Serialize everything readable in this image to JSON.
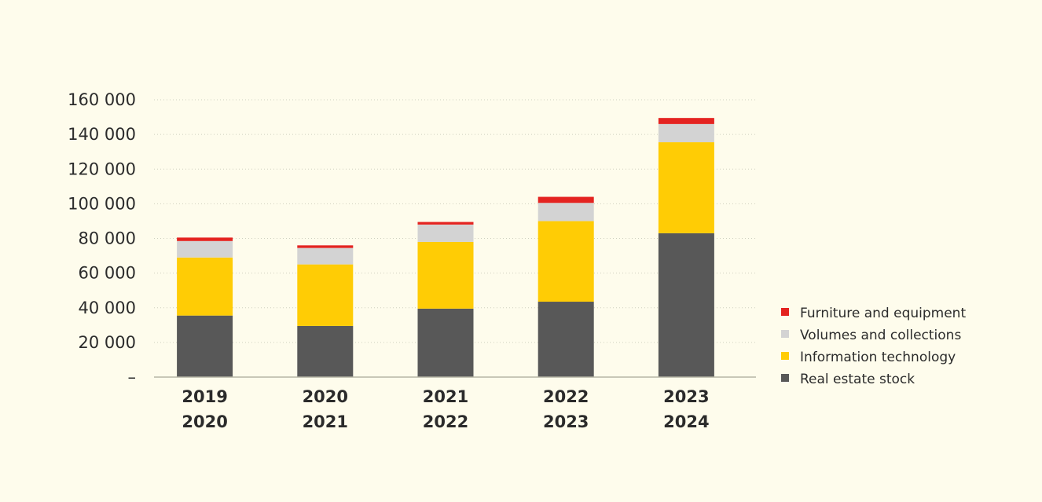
{
  "chart_data": {
    "type": "bar",
    "stacked": true,
    "categories": [
      [
        "2019",
        "2020"
      ],
      [
        "2020",
        "2021"
      ],
      [
        "2021",
        "2022"
      ],
      [
        "2022",
        "2023"
      ],
      [
        "2023",
        "2024"
      ]
    ],
    "series": [
      {
        "name": "Real estate stock",
        "color": "#585858",
        "values": [
          35500,
          29500,
          39500,
          43500,
          83000
        ]
      },
      {
        "name": "Information technology",
        "color": "#ffcc05",
        "values": [
          33500,
          35500,
          38500,
          46500,
          52500
        ]
      },
      {
        "name": "Volumes and collections",
        "color": "#d3d3d3",
        "values": [
          9500,
          9500,
          10000,
          10500,
          10500
        ]
      },
      {
        "name": "Furniture and equipment",
        "color": "#e42320",
        "values": [
          2000,
          1500,
          1500,
          3500,
          3500
        ]
      }
    ],
    "y_ticks": [
      0,
      20000,
      40000,
      60000,
      80000,
      100000,
      120000,
      140000,
      160000
    ],
    "y_tick_labels": [
      "–",
      "20 000",
      "40 000",
      "60 000",
      "80 000",
      "100 000",
      "120 000",
      "140 000",
      "160 000"
    ],
    "ylim": [
      0,
      160000
    ],
    "grid": true,
    "legend_position": "right",
    "legend_order": [
      "Furniture and equipment",
      "Volumes and collections",
      "Information technology",
      "Real estate stock"
    ]
  }
}
